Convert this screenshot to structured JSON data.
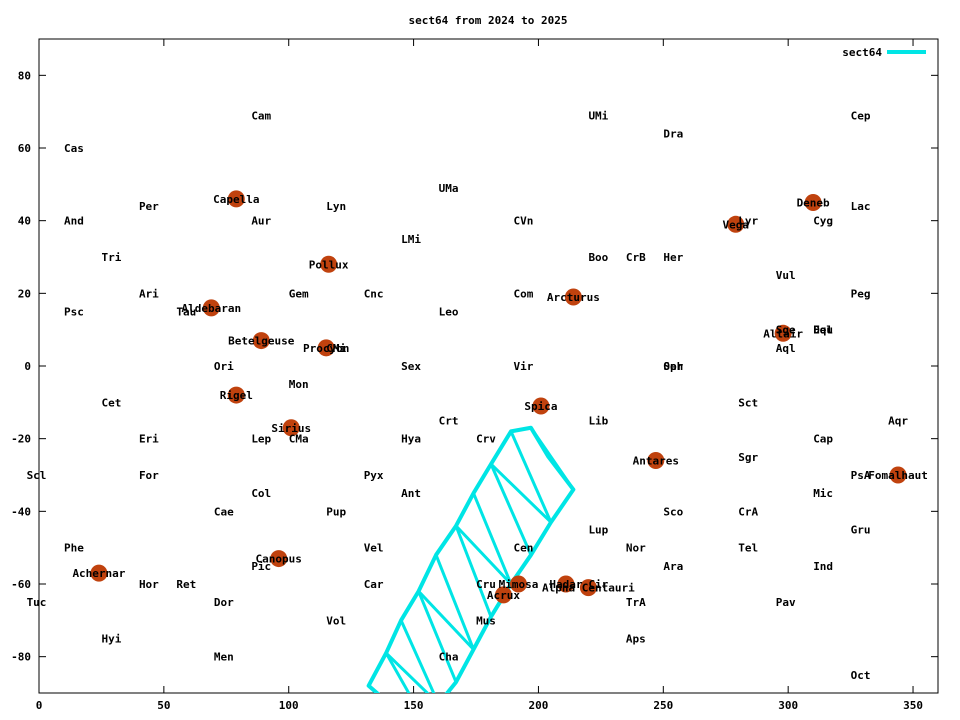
{
  "chart_data": {
    "type": "scatter",
    "title": "sect64 from 2024 to 2025",
    "xlim": [
      0,
      360
    ],
    "ylim": [
      -90,
      90
    ],
    "xticks": [
      0,
      50,
      100,
      150,
      200,
      250,
      300,
      350
    ],
    "yticks": [
      -80,
      -60,
      -40,
      -20,
      0,
      20,
      40,
      60,
      80
    ],
    "grid": false,
    "legend": {
      "position": "top-right",
      "entries": [
        {
          "name": "sect64",
          "color": "#00e5e5"
        }
      ]
    },
    "colors": {
      "star": "#c0420e",
      "line": "#00e5e5",
      "axis": "#000000"
    },
    "constellations": [
      {
        "name": "Cam",
        "x": 89,
        "y": 69
      },
      {
        "name": "UMi",
        "x": 224,
        "y": 69
      },
      {
        "name": "Cep",
        "x": 329,
        "y": 69
      },
      {
        "name": "Dra",
        "x": 254,
        "y": 64
      },
      {
        "name": "Cas",
        "x": 14,
        "y": 60
      },
      {
        "name": "UMa",
        "x": 164,
        "y": 49
      },
      {
        "name": "Per",
        "x": 44,
        "y": 44
      },
      {
        "name": "Lyn",
        "x": 119,
        "y": 44
      },
      {
        "name": "Lac",
        "x": 329,
        "y": 44
      },
      {
        "name": "And",
        "x": 14,
        "y": 40
      },
      {
        "name": "Aur",
        "x": 89,
        "y": 40
      },
      {
        "name": "CVn",
        "x": 194,
        "y": 40
      },
      {
        "name": "Lyr",
        "x": 284,
        "y": 40
      },
      {
        "name": "Cyg",
        "x": 314,
        "y": 40
      },
      {
        "name": "LMi",
        "x": 149,
        "y": 35
      },
      {
        "name": "Tri",
        "x": 29,
        "y": 30
      },
      {
        "name": "Boo",
        "x": 224,
        "y": 30
      },
      {
        "name": "CrB",
        "x": 239,
        "y": 30
      },
      {
        "name": "Her",
        "x": 254,
        "y": 30
      },
      {
        "name": "Vul",
        "x": 299,
        "y": 25
      },
      {
        "name": "Ari",
        "x": 44,
        "y": 20
      },
      {
        "name": "Gem",
        "x": 104,
        "y": 20
      },
      {
        "name": "Cnc",
        "x": 134,
        "y": 20
      },
      {
        "name": "Com",
        "x": 194,
        "y": 20
      },
      {
        "name": "Peg",
        "x": 329,
        "y": 20
      },
      {
        "name": "Psc",
        "x": 14,
        "y": 15
      },
      {
        "name": "Tau",
        "x": 59,
        "y": 15
      },
      {
        "name": "Leo",
        "x": 164,
        "y": 15
      },
      {
        "name": "Sge",
        "x": 299,
        "y": 10
      },
      {
        "name": "Equ",
        "x": 314,
        "y": 10
      },
      {
        "name": "Del",
        "x": 314,
        "y": 10
      },
      {
        "name": "Aql",
        "x": 299,
        "y": 5
      },
      {
        "name": "CMi",
        "x": 119,
        "y": 5
      },
      {
        "name": "Ori",
        "x": 74,
        "y": 0
      },
      {
        "name": "Sex",
        "x": 149,
        "y": 0
      },
      {
        "name": "Vir",
        "x": 194,
        "y": 0
      },
      {
        "name": "Oph",
        "x": 254,
        "y": 0
      },
      {
        "name": "Ser",
        "x": 254,
        "y": 0
      },
      {
        "name": "Mon",
        "x": 104,
        "y": -5
      },
      {
        "name": "Cet",
        "x": 29,
        "y": -10
      },
      {
        "name": "Sct",
        "x": 284,
        "y": -10
      },
      {
        "name": "Crt",
        "x": 164,
        "y": -15
      },
      {
        "name": "Lib",
        "x": 224,
        "y": -15
      },
      {
        "name": "Aqr",
        "x": 344,
        "y": -15
      },
      {
        "name": "Eri",
        "x": 44,
        "y": -20
      },
      {
        "name": "Lep",
        "x": 89,
        "y": -20
      },
      {
        "name": "CMa",
        "x": 104,
        "y": -20
      },
      {
        "name": "Hya",
        "x": 149,
        "y": -20
      },
      {
        "name": "Crv",
        "x": 179,
        "y": -20
      },
      {
        "name": "Cap",
        "x": 314,
        "y": -20
      },
      {
        "name": "Sgr",
        "x": 284,
        "y": -25
      },
      {
        "name": "Scl",
        "x": -1,
        "y": -30
      },
      {
        "name": "For",
        "x": 44,
        "y": -30
      },
      {
        "name": "Pyx",
        "x": 134,
        "y": -30
      },
      {
        "name": "PsA",
        "x": 329,
        "y": -30
      },
      {
        "name": "Col",
        "x": 89,
        "y": -35
      },
      {
        "name": "Ant",
        "x": 149,
        "y": -35
      },
      {
        "name": "Mic",
        "x": 314,
        "y": -35
      },
      {
        "name": "Cae",
        "x": 74,
        "y": -40
      },
      {
        "name": "Pup",
        "x": 119,
        "y": -40
      },
      {
        "name": "Sco",
        "x": 254,
        "y": -40
      },
      {
        "name": "CrA",
        "x": 284,
        "y": -40
      },
      {
        "name": "Lup",
        "x": 224,
        "y": -45
      },
      {
        "name": "Gru",
        "x": 329,
        "y": -45
      },
      {
        "name": "Phe",
        "x": 14,
        "y": -50
      },
      {
        "name": "Vel",
        "x": 134,
        "y": -50
      },
      {
        "name": "Cen",
        "x": 194,
        "y": -50
      },
      {
        "name": "Nor",
        "x": 239,
        "y": -50
      },
      {
        "name": "Tel",
        "x": 284,
        "y": -50
      },
      {
        "name": "Pic",
        "x": 89,
        "y": -55
      },
      {
        "name": "Ara",
        "x": 254,
        "y": -55
      },
      {
        "name": "Ind",
        "x": 314,
        "y": -55
      },
      {
        "name": "Hor",
        "x": 44,
        "y": -60
      },
      {
        "name": "Ret",
        "x": 59,
        "y": -60
      },
      {
        "name": "Car",
        "x": 134,
        "y": -60
      },
      {
        "name": "Cru",
        "x": 179,
        "y": -60
      },
      {
        "name": "Cir",
        "x": 224,
        "y": -60
      },
      {
        "name": "Tuc",
        "x": -1,
        "y": -65
      },
      {
        "name": "Dor",
        "x": 74,
        "y": -65
      },
      {
        "name": "TrA",
        "x": 239,
        "y": -65
      },
      {
        "name": "Pav",
        "x": 299,
        "y": -65
      },
      {
        "name": "Vol",
        "x": 119,
        "y": -70
      },
      {
        "name": "Mus",
        "x": 179,
        "y": -70
      },
      {
        "name": "Hyi",
        "x": 29,
        "y": -75
      },
      {
        "name": "Aps",
        "x": 239,
        "y": -75
      },
      {
        "name": "Men",
        "x": 74,
        "y": -80
      },
      {
        "name": "Cha",
        "x": 164,
        "y": -80
      },
      {
        "name": "Oct",
        "x": 329,
        "y": -85
      }
    ],
    "stars": [
      {
        "name": "Capella",
        "x": 79,
        "y": 46
      },
      {
        "name": "Deneb",
        "x": 310,
        "y": 45
      },
      {
        "name": "Vega",
        "x": 279,
        "y": 39
      },
      {
        "name": "Pollux",
        "x": 116,
        "y": 28
      },
      {
        "name": "Arcturus",
        "x": 214,
        "y": 19
      },
      {
        "name": "Aldebaran",
        "x": 69,
        "y": 16
      },
      {
        "name": "Altair",
        "x": 298,
        "y": 9
      },
      {
        "name": "Betelgeuse",
        "x": 89,
        "y": 7
      },
      {
        "name": "Procyon",
        "x": 115,
        "y": 5
      },
      {
        "name": "Rigel",
        "x": 79,
        "y": -8
      },
      {
        "name": "Spica",
        "x": 201,
        "y": -11
      },
      {
        "name": "Sirius",
        "x": 101,
        "y": -17
      },
      {
        "name": "Antares",
        "x": 247,
        "y": -26
      },
      {
        "name": "Fomalhaut",
        "x": 344,
        "y": -30
      },
      {
        "name": "Canopus",
        "x": 96,
        "y": -53
      },
      {
        "name": "Achernar",
        "x": 24,
        "y": -57
      },
      {
        "name": "Mimosa",
        "x": 192,
        "y": -60
      },
      {
        "name": "Hadar",
        "x": 211,
        "y": -60
      },
      {
        "name": "Alpha Centauri",
        "x": 220,
        "y": -61
      },
      {
        "name": "Acrux",
        "x": 186,
        "y": -63
      }
    ],
    "series": [
      {
        "name": "sect64",
        "x": [
          132,
          139,
          145,
          152,
          159,
          167,
          174,
          181,
          189,
          197,
          204,
          214,
          205,
          197,
          189,
          181,
          174,
          167,
          160,
          153,
          147
        ],
        "y": [
          -88,
          -79,
          -70,
          -62,
          -52,
          -44,
          -35,
          -27,
          -18,
          -17,
          -25,
          -34,
          -43,
          -52,
          -60,
          -69,
          -78,
          -87,
          -93,
          -96,
          -97
        ]
      }
    ]
  }
}
